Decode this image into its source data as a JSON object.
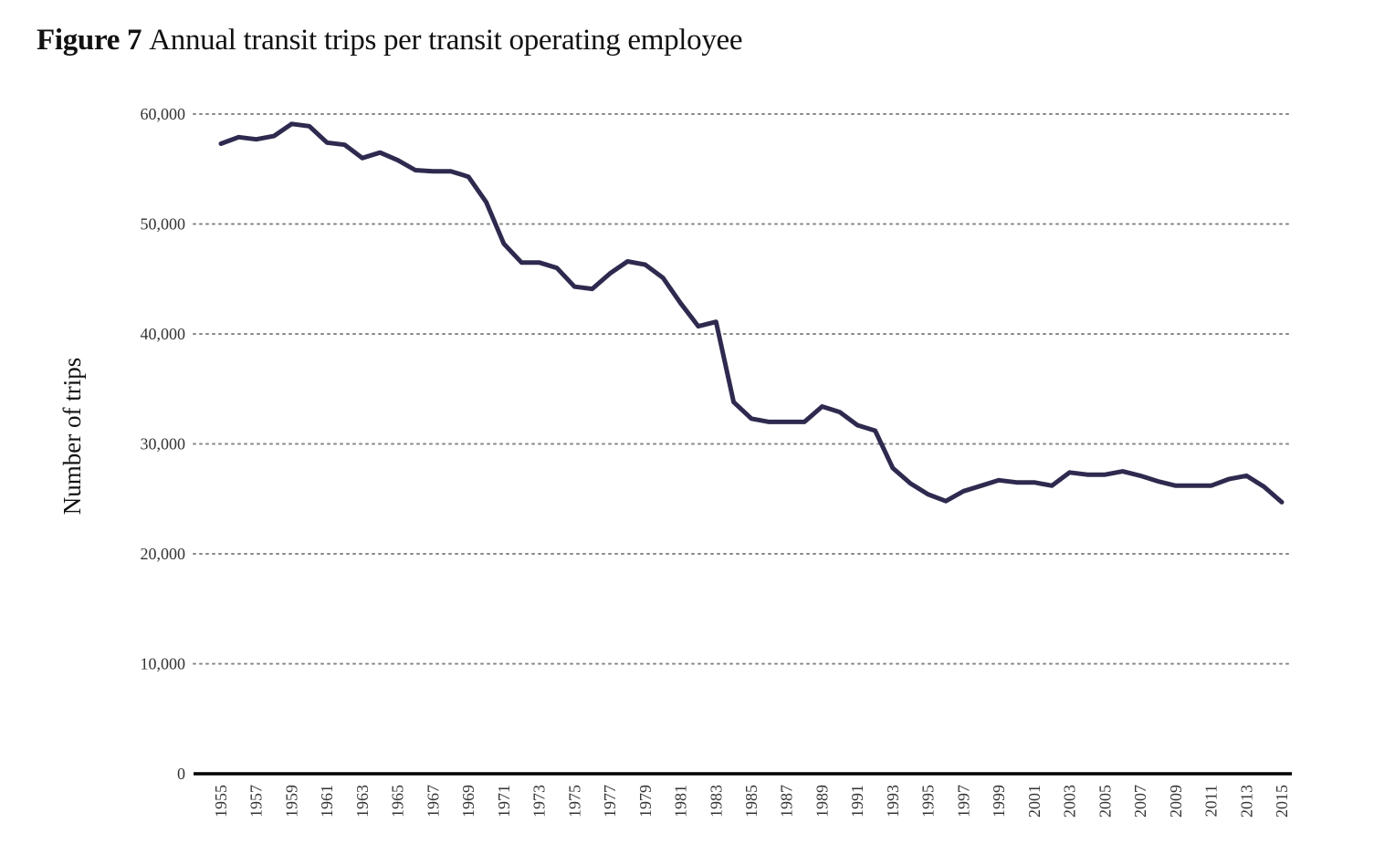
{
  "title": {
    "label": "Figure 7",
    "text": "Annual transit trips per transit operating employee"
  },
  "chart_data": {
    "type": "line",
    "title": "Annual transit trips per transit operating employee",
    "xlabel": "",
    "ylabel": "Number of trips",
    "ylim": [
      0,
      60000
    ],
    "yticks": [
      0,
      10000,
      20000,
      30000,
      40000,
      50000,
      60000
    ],
    "ytick_labels": [
      "0",
      "10,000",
      "20,000",
      "30,000",
      "40,000",
      "50,000",
      "60,000"
    ],
    "xticks": [
      "1955",
      "1957",
      "1959",
      "1961",
      "1963",
      "1965",
      "1967",
      "1969",
      "1971",
      "1973",
      "1975",
      "1977",
      "1979",
      "1981",
      "1983",
      "1985",
      "1987",
      "1989",
      "1991",
      "1993",
      "1995",
      "1997",
      "1999",
      "2001",
      "2003",
      "2005",
      "2007",
      "2009",
      "2011",
      "2013",
      "2015"
    ],
    "grid": "horizontal dotted",
    "colors": {
      "line": "#2e2a4f",
      "grid": "#888888",
      "axis": "#000000"
    },
    "series": [
      {
        "name": "Annual transit trips per transit operating employee",
        "x": [
          1955,
          1956,
          1957,
          1958,
          1959,
          1960,
          1961,
          1962,
          1963,
          1964,
          1965,
          1966,
          1967,
          1968,
          1969,
          1970,
          1971,
          1972,
          1973,
          1974,
          1975,
          1976,
          1977,
          1978,
          1979,
          1980,
          1981,
          1982,
          1983,
          1984,
          1985,
          1986,
          1987,
          1988,
          1989,
          1990,
          1991,
          1992,
          1993,
          1994,
          1995,
          1996,
          1997,
          1998,
          1999,
          2000,
          2001,
          2002,
          2003,
          2004,
          2005,
          2006,
          2007,
          2008,
          2009,
          2010,
          2011,
          2012,
          2013,
          2014,
          2015
        ],
        "values": [
          57300,
          57900,
          57700,
          58000,
          59100,
          58900,
          57400,
          57200,
          56000,
          56500,
          55800,
          54900,
          54800,
          54800,
          54300,
          52000,
          48200,
          46500,
          46500,
          46000,
          44300,
          44100,
          45500,
          46600,
          46300,
          45100,
          42800,
          40700,
          41100,
          33800,
          32300,
          32000,
          32000,
          32000,
          33400,
          32900,
          31700,
          31200,
          27800,
          26400,
          25400,
          24800,
          25700,
          26200,
          26700,
          26500,
          26500,
          26200,
          27400,
          27200,
          27200,
          27500,
          27100,
          26600,
          26200,
          26200,
          26200,
          26800,
          27100,
          26100,
          24700
        ]
      }
    ]
  }
}
